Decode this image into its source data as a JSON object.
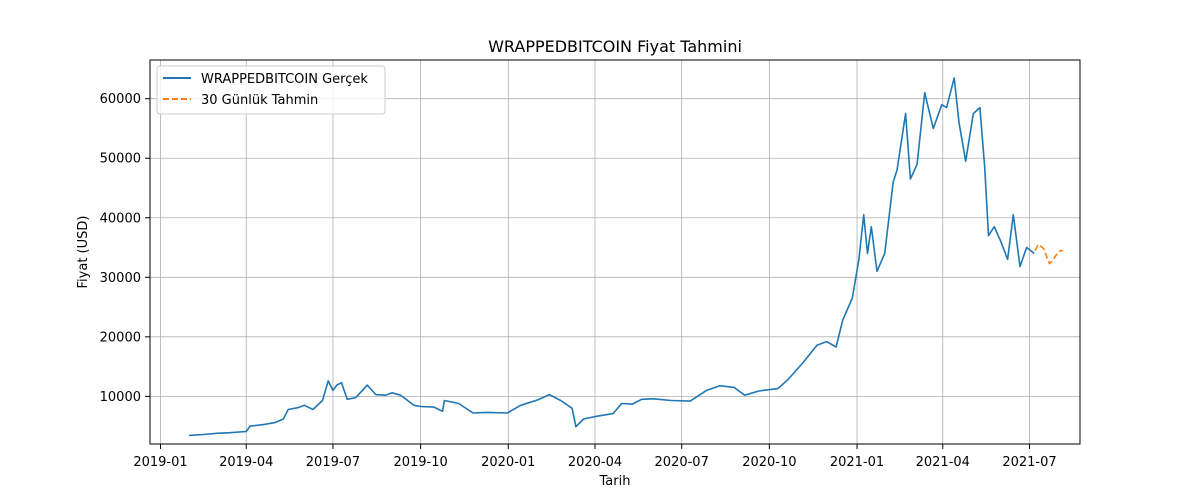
{
  "chart_data": {
    "type": "line",
    "title": "WRAPPEDBITCOIN Fiyat Tahmini",
    "xlabel": "Tarih",
    "ylabel": "Fiyat (USD)",
    "xlim": [
      "2018-12-21",
      "2021-08-23"
    ],
    "ylim": [
      2000,
      66500
    ],
    "grid": true,
    "legend_position": "top-left",
    "x_ticks": [
      {
        "date": "2019-01-01",
        "label": "2019-01"
      },
      {
        "date": "2019-04-01",
        "label": "2019-04"
      },
      {
        "date": "2019-07-01",
        "label": "2019-07"
      },
      {
        "date": "2019-10-01",
        "label": "2019-10"
      },
      {
        "date": "2020-01-01",
        "label": "2020-01"
      },
      {
        "date": "2020-04-01",
        "label": "2020-04"
      },
      {
        "date": "2020-07-01",
        "label": "2020-07"
      },
      {
        "date": "2020-10-01",
        "label": "2020-10"
      },
      {
        "date": "2021-01-01",
        "label": "2021-01"
      },
      {
        "date": "2021-04-01",
        "label": "2021-04"
      },
      {
        "date": "2021-07-01",
        "label": "2021-07"
      }
    ],
    "y_ticks": [
      10000,
      20000,
      30000,
      40000,
      50000,
      60000
    ],
    "series": [
      {
        "name": "WRAPPEDBITCOIN Gerçek",
        "color": "#1f77b4",
        "style": "solid",
        "points": [
          [
            "2019-01-31",
            3450
          ],
          [
            "2019-02-15",
            3600
          ],
          [
            "2019-03-01",
            3800
          ],
          [
            "2019-03-15",
            3900
          ],
          [
            "2019-04-01",
            4100
          ],
          [
            "2019-04-05",
            5000
          ],
          [
            "2019-04-20",
            5300
          ],
          [
            "2019-05-01",
            5600
          ],
          [
            "2019-05-10",
            6200
          ],
          [
            "2019-05-15",
            7800
          ],
          [
            "2019-05-25",
            8100
          ],
          [
            "2019-06-01",
            8500
          ],
          [
            "2019-06-10",
            7800
          ],
          [
            "2019-06-20",
            9300
          ],
          [
            "2019-06-26",
            12600
          ],
          [
            "2019-07-01",
            11000
          ],
          [
            "2019-07-05",
            11900
          ],
          [
            "2019-07-10",
            12300
          ],
          [
            "2019-07-16",
            9500
          ],
          [
            "2019-07-25",
            9800
          ],
          [
            "2019-08-06",
            11900
          ],
          [
            "2019-08-15",
            10300
          ],
          [
            "2019-08-25",
            10200
          ],
          [
            "2019-09-01",
            10600
          ],
          [
            "2019-09-10",
            10200
          ],
          [
            "2019-09-24",
            8500
          ],
          [
            "2019-10-01",
            8300
          ],
          [
            "2019-10-15",
            8200
          ],
          [
            "2019-10-24",
            7500
          ],
          [
            "2019-10-26",
            9300
          ],
          [
            "2019-11-10",
            8800
          ],
          [
            "2019-11-25",
            7200
          ],
          [
            "2019-12-10",
            7300
          ],
          [
            "2019-12-31",
            7200
          ],
          [
            "2020-01-14",
            8500
          ],
          [
            "2020-02-01",
            9400
          ],
          [
            "2020-02-13",
            10300
          ],
          [
            "2020-02-25",
            9300
          ],
          [
            "2020-03-08",
            8000
          ],
          [
            "2020-03-12",
            4900
          ],
          [
            "2020-03-20",
            6200
          ],
          [
            "2020-04-01",
            6600
          ],
          [
            "2020-04-20",
            7100
          ],
          [
            "2020-04-29",
            8800
          ],
          [
            "2020-05-10",
            8700
          ],
          [
            "2020-05-20",
            9500
          ],
          [
            "2020-06-01",
            9600
          ],
          [
            "2020-06-20",
            9300
          ],
          [
            "2020-07-10",
            9200
          ],
          [
            "2020-07-27",
            11000
          ],
          [
            "2020-08-10",
            11800
          ],
          [
            "2020-08-25",
            11500
          ],
          [
            "2020-09-05",
            10200
          ],
          [
            "2020-09-20",
            10900
          ],
          [
            "2020-10-10",
            11300
          ],
          [
            "2020-10-21",
            12900
          ],
          [
            "2020-11-05",
            15600
          ],
          [
            "2020-11-20",
            18600
          ],
          [
            "2020-11-30",
            19200
          ],
          [
            "2020-12-10",
            18300
          ],
          [
            "2020-12-17",
            22800
          ],
          [
            "2020-12-27",
            26500
          ],
          [
            "2021-01-03",
            33000
          ],
          [
            "2021-01-08",
            40500
          ],
          [
            "2021-01-12",
            34000
          ],
          [
            "2021-01-16",
            38500
          ],
          [
            "2021-01-22",
            31000
          ],
          [
            "2021-01-30",
            34000
          ],
          [
            "2021-02-08",
            46000
          ],
          [
            "2021-02-12",
            48000
          ],
          [
            "2021-02-21",
            57500
          ],
          [
            "2021-02-26",
            46500
          ],
          [
            "2021-03-05",
            49000
          ],
          [
            "2021-03-13",
            61000
          ],
          [
            "2021-03-22",
            55000
          ],
          [
            "2021-03-31",
            59000
          ],
          [
            "2021-04-05",
            58500
          ],
          [
            "2021-04-13",
            63500
          ],
          [
            "2021-04-18",
            56000
          ],
          [
            "2021-04-25",
            49500
          ],
          [
            "2021-05-03",
            57500
          ],
          [
            "2021-05-10",
            58500
          ],
          [
            "2021-05-15",
            48500
          ],
          [
            "2021-05-19",
            37000
          ],
          [
            "2021-05-25",
            38500
          ],
          [
            "2021-06-01",
            36000
          ],
          [
            "2021-06-08",
            33000
          ],
          [
            "2021-06-14",
            40500
          ],
          [
            "2021-06-21",
            31800
          ],
          [
            "2021-06-28",
            35000
          ],
          [
            "2021-07-06",
            34000
          ]
        ]
      },
      {
        "name": "30 Günlük Tahmin",
        "color": "#ff7f0e",
        "style": "dashed",
        "points": [
          [
            "2021-07-07",
            34500
          ],
          [
            "2021-07-10",
            35500
          ],
          [
            "2021-07-13",
            35200
          ],
          [
            "2021-07-16",
            34800
          ],
          [
            "2021-07-19",
            33500
          ],
          [
            "2021-07-22",
            32300
          ],
          [
            "2021-07-25",
            32800
          ],
          [
            "2021-07-28",
            33500
          ],
          [
            "2021-07-31",
            34200
          ],
          [
            "2021-08-03",
            34500
          ],
          [
            "2021-08-05",
            34400
          ]
        ]
      }
    ]
  }
}
